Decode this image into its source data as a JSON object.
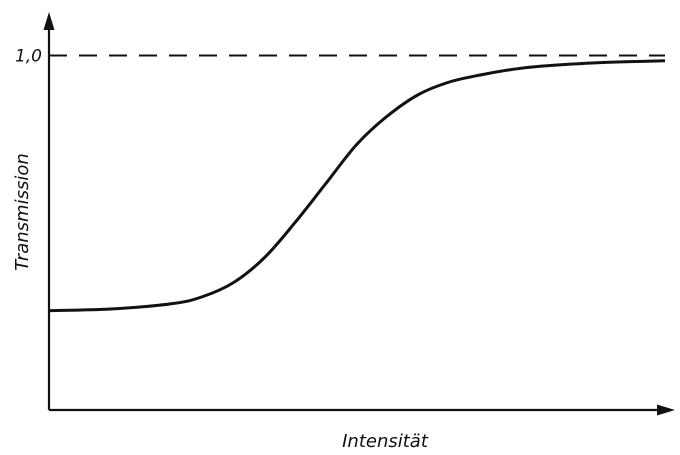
{
  "chart_data": {
    "type": "line",
    "title": "",
    "xlabel": "Intensität",
    "ylabel": "Transmission",
    "y_tick_labels": [
      "1,0"
    ],
    "y_tick_values": [
      1.0
    ],
    "reference_line": {
      "y": 1.0,
      "style": "dashed"
    },
    "xlim": [
      0,
      10
    ],
    "ylim": [
      0,
      1.1
    ],
    "grid": false,
    "series": [
      {
        "x": [
          0,
          1,
          2,
          2.5,
          3,
          3.5,
          4,
          4.5,
          5,
          5.5,
          6,
          6.5,
          7,
          7.5,
          8,
          9,
          10
        ],
        "y": [
          0.28,
          0.285,
          0.3,
          0.32,
          0.36,
          0.43,
          0.53,
          0.64,
          0.75,
          0.83,
          0.89,
          0.925,
          0.945,
          0.96,
          0.97,
          0.98,
          0.985
        ]
      }
    ]
  }
}
